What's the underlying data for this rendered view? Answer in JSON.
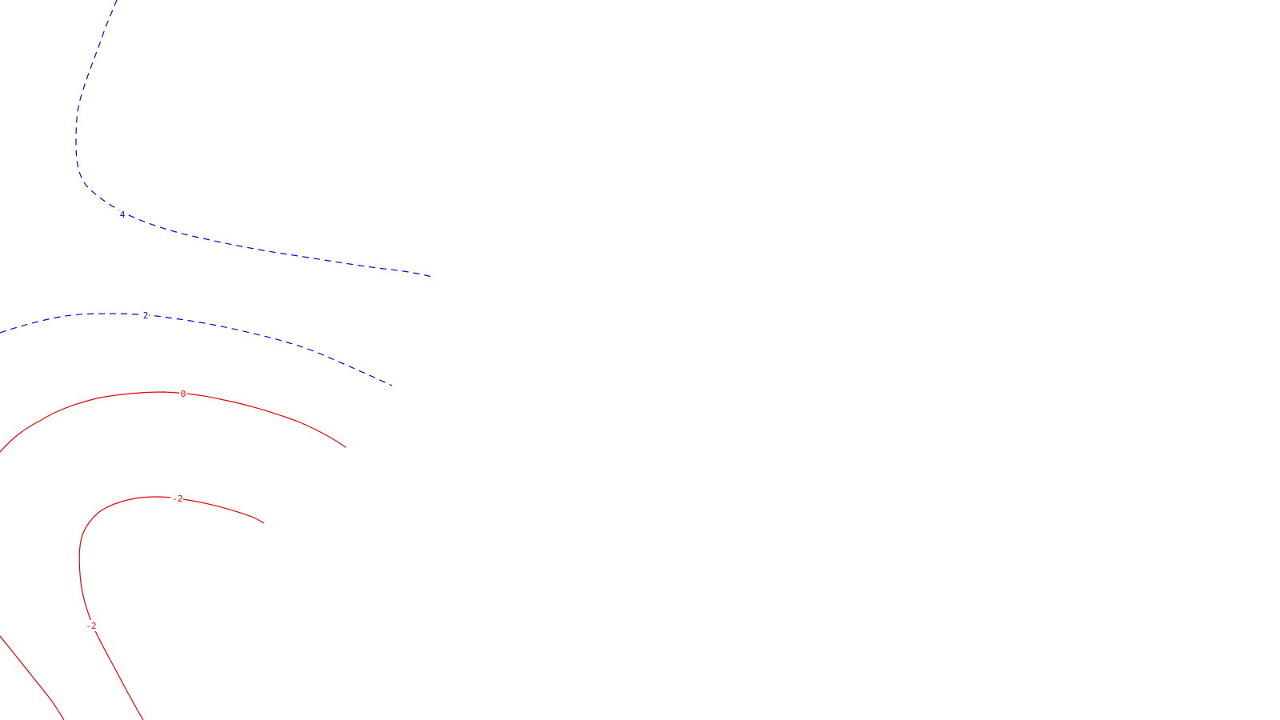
{
  "map": {
    "colors": {
      "positive": "#0000ee",
      "negative": "#ee0000",
      "background": "#ffffff"
    },
    "contours": [
      {
        "id": "c4",
        "level": 4,
        "label": "4",
        "style": "dashed",
        "color": "positive"
      },
      {
        "id": "c2",
        "level": 2,
        "label": "2",
        "style": "dashed",
        "color": "positive"
      },
      {
        "id": "c0",
        "level": 0,
        "label": "0",
        "style": "solid",
        "color": "negative"
      },
      {
        "id": "cm2a",
        "level": -2,
        "label": "-2",
        "label2": "-2",
        "style": "solid",
        "color": "negative"
      },
      {
        "id": "cm2b",
        "level": -2,
        "label": "",
        "style": "solid",
        "color": "negative"
      }
    ]
  }
}
